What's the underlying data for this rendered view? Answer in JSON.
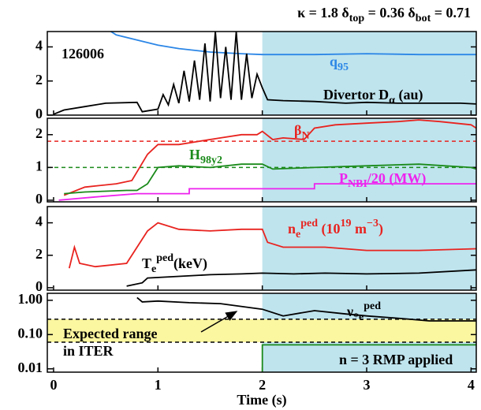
{
  "chart_data": [
    {
      "type": "line",
      "xlim": [
        -0.06,
        4.05
      ],
      "ylim": [
        0,
        4.9
      ],
      "yticks": [
        0,
        2,
        4
      ],
      "shade": {
        "x": [
          2.0,
          4.05
        ],
        "color": "#bfe4ee"
      },
      "top_annotation": [
        {
          "text": "κ = 1.8   δ"
        },
        {
          "text": "top",
          "style": "sub"
        },
        {
          "text": " = 0.36 δ"
        },
        {
          "text": "bot",
          "style": "sub"
        },
        {
          "text": " = 0.71"
        }
      ],
      "annotations": [
        [
          {
            "text": "126006"
          }
        ]
      ],
      "series": [
        {
          "label": [
            {
              "text": "q"
            },
            {
              "text": "95",
              "style": "sub"
            }
          ],
          "color": "#2b86e6",
          "x": [
            0.55,
            0.6,
            0.8,
            1.0,
            1.2,
            1.5,
            1.8,
            2.0,
            2.5,
            3.0,
            3.5,
            4.05
          ],
          "values": [
            4.9,
            4.7,
            4.4,
            4.1,
            3.9,
            3.7,
            3.6,
            3.55,
            3.55,
            3.6,
            3.55,
            3.55
          ]
        },
        {
          "label": [
            {
              "text": "Divertor D"
            },
            {
              "text": "α",
              "style": "sub"
            },
            {
              "text": " (au)"
            }
          ],
          "color": "#000000",
          "x": [
            0,
            0.1,
            0.3,
            0.5,
            0.8,
            0.85,
            1.0,
            1.05,
            1.1,
            1.15,
            1.2,
            1.25,
            1.3,
            1.35,
            1.4,
            1.45,
            1.5,
            1.55,
            1.6,
            1.65,
            1.7,
            1.75,
            1.8,
            1.85,
            1.9,
            1.95,
            2.0,
            2.05,
            2.2,
            2.5,
            2.8,
            3.0,
            3.3,
            3.6,
            3.9,
            4.05
          ],
          "values": [
            0.05,
            0.3,
            0.5,
            0.7,
            0.75,
            0.2,
            0.35,
            1.2,
            0.6,
            1.8,
            0.7,
            2.6,
            0.8,
            3.2,
            0.9,
            4.2,
            0.8,
            4.9,
            1.0,
            4.0,
            0.9,
            4.9,
            0.9,
            3.6,
            1.0,
            2.4,
            1.6,
            0.9,
            0.85,
            0.8,
            0.7,
            0.75,
            0.7,
            0.7,
            0.7,
            0.65
          ]
        }
      ]
    },
    {
      "type": "line",
      "xlim": [
        -0.06,
        4.05
      ],
      "ylim": [
        -0.05,
        2.5
      ],
      "yticks": [
        0,
        1,
        2
      ],
      "shade": {
        "x": [
          2.0,
          4.05
        ],
        "color": "#bfe4ee"
      },
      "hlines": [
        {
          "value": 1.8,
          "color": "#e8231f"
        },
        {
          "value": 1.0,
          "color": "#1a8a1a"
        }
      ],
      "series": [
        {
          "label": [
            {
              "text": "β"
            },
            {
              "text": "N",
              "style": "sub"
            }
          ],
          "color": "#e8231f",
          "x": [
            0.1,
            0.3,
            0.6,
            0.75,
            0.9,
            1.0,
            1.2,
            1.4,
            1.6,
            1.8,
            1.95,
            2.0,
            2.1,
            2.2,
            2.4,
            2.5,
            2.7,
            3.0,
            3.3,
            3.5,
            3.7,
            4.0,
            4.05
          ],
          "values": [
            0.15,
            0.4,
            0.5,
            0.6,
            1.4,
            1.7,
            1.7,
            1.8,
            1.9,
            2.0,
            2.0,
            2.1,
            1.85,
            1.9,
            1.85,
            2.2,
            2.3,
            2.35,
            2.4,
            2.45,
            2.4,
            2.3,
            2.2
          ]
        },
        {
          "label": [
            {
              "text": "H"
            },
            {
              "text": "98y2",
              "style": "sub"
            }
          ],
          "color": "#1a8a1a",
          "x": [
            0.1,
            0.3,
            0.7,
            0.8,
            0.9,
            1.0,
            1.2,
            1.5,
            1.8,
            2.0,
            2.1,
            2.5,
            3.0,
            3.5,
            4.0,
            4.05
          ],
          "values": [
            0.2,
            0.25,
            0.3,
            0.3,
            0.5,
            1.0,
            1.05,
            1.0,
            1.1,
            1.1,
            0.95,
            1.0,
            1.05,
            1.1,
            1.0,
            0.95
          ]
        },
        {
          "label": [
            {
              "text": "P"
            },
            {
              "text": "NBI",
              "style": "sub"
            },
            {
              "text": "/20 (MW)"
            }
          ],
          "color": "#ee22ee",
          "x": [
            0.05,
            0.4,
            0.8,
            1.3,
            1.3,
            2.5,
            2.5,
            4.05
          ],
          "values": [
            0,
            0.1,
            0.2,
            0.2,
            0.35,
            0.35,
            0.5,
            0.5
          ]
        }
      ]
    },
    {
      "type": "line",
      "xlim": [
        -0.06,
        4.05
      ],
      "ylim": [
        -0.15,
        5
      ],
      "yticks": [
        0,
        2,
        4
      ],
      "shade": {
        "x": [
          2.0,
          4.05
        ],
        "color": "#bfe4ee"
      },
      "series": [
        {
          "label": [
            {
              "text": "n"
            },
            {
              "text": "e",
              "style": "sub"
            },
            {
              "text": "ped",
              "style": "sup"
            },
            {
              "text": " (10"
            },
            {
              "text": "19",
              "style": "sup"
            },
            {
              "text": " m"
            },
            {
              "text": "−3",
              "style": "sup"
            },
            {
              "text": ")"
            }
          ],
          "color": "#e8231f",
          "x": [
            0.15,
            0.2,
            0.25,
            0.4,
            0.7,
            0.9,
            1.0,
            1.2,
            1.5,
            1.8,
            2.0,
            2.05,
            2.2,
            2.6,
            3.0,
            3.5,
            4.05
          ],
          "values": [
            1.2,
            2.5,
            1.5,
            1.3,
            1.5,
            3.5,
            4.0,
            3.6,
            3.5,
            3.6,
            3.6,
            2.8,
            2.5,
            2.5,
            2.3,
            2.3,
            2.4
          ]
        },
        {
          "label": [
            {
              "text": "T"
            },
            {
              "text": "e",
              "style": "sub"
            },
            {
              "text": "ped",
              "style": "sup"
            },
            {
              "text": "(keV)"
            }
          ],
          "color": "#000000",
          "x": [
            0.7,
            0.85,
            0.9,
            1.2,
            1.5,
            1.8,
            2.0,
            2.3,
            2.6,
            3.0,
            3.5,
            4.05
          ],
          "values": [
            0.1,
            0.3,
            0.6,
            0.7,
            0.8,
            0.85,
            0.9,
            0.85,
            0.9,
            0.85,
            0.9,
            1.1
          ]
        }
      ]
    },
    {
      "type": "line",
      "xlim": [
        -0.06,
        4.05
      ],
      "ylim": [
        0.008,
        1.6
      ],
      "yscale": "log",
      "yticks": [
        {
          "value": 1,
          "label": "1.00"
        },
        {
          "value": 0.1,
          "label": "0.10"
        },
        0.01
      ],
      "xticks": [
        0,
        1,
        2,
        3,
        4
      ],
      "x_label": "Time (s)",
      "shade": {
        "x": [
          2.0,
          4.05
        ],
        "color": "#bfe4ee"
      },
      "band": {
        "y": [
          0.06,
          0.28
        ],
        "color": "#fbf6a0"
      },
      "hlines": [
        {
          "value": 0.06,
          "color": "#000000"
        },
        {
          "value": 0.28,
          "color": "#000000"
        }
      ],
      "annotations": [
        [
          {
            "text": "Expected range"
          }
        ],
        [
          {
            "text": "in ITER"
          }
        ],
        [
          {
            "text": "n = 3 RMP applied"
          }
        ]
      ],
      "series": [
        {
          "label": [
            {
              "text": "ν"
            },
            {
              "text": "*e",
              "style": "sub"
            },
            {
              "text": "ped",
              "style": "sup"
            }
          ],
          "color": "#000000",
          "x": [
            0.8,
            0.85,
            1.0,
            1.3,
            1.6,
            2.0,
            2.2,
            2.5,
            2.8,
            3.0,
            3.3,
            3.6,
            4.05
          ],
          "values": [
            1.2,
            0.9,
            0.95,
            0.85,
            0.8,
            0.55,
            0.35,
            0.5,
            0.4,
            0.35,
            0.3,
            0.25,
            0.25
          ]
        },
        {
          "color": "#1a8a1a",
          "x": [
            2.0,
            2.0,
            4.05
          ],
          "values": [
            0.008,
            0.05,
            0.05
          ]
        }
      ]
    }
  ]
}
